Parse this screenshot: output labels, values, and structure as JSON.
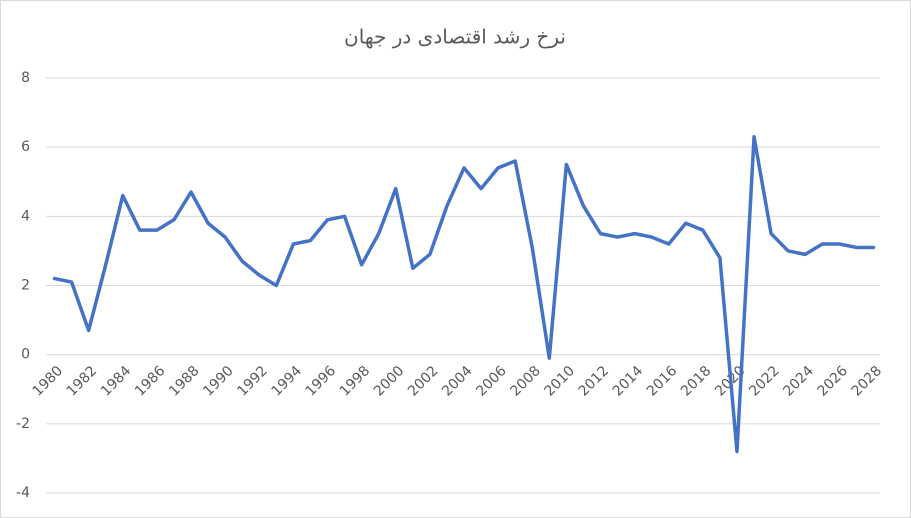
{
  "chart_data": {
    "type": "line",
    "title": "نرخ رشد اقتصادی در جهان",
    "x": [
      1980,
      1981,
      1982,
      1983,
      1984,
      1985,
      1986,
      1987,
      1988,
      1989,
      1990,
      1991,
      1992,
      1993,
      1994,
      1995,
      1996,
      1997,
      1998,
      1999,
      2000,
      2001,
      2002,
      2003,
      2004,
      2005,
      2006,
      2007,
      2008,
      2009,
      2010,
      2011,
      2012,
      2013,
      2014,
      2015,
      2016,
      2017,
      2018,
      2019,
      2020,
      2021,
      2022,
      2023,
      2024,
      2025,
      2026,
      2027,
      2028
    ],
    "series": [
      {
        "name": "نرخ رشد",
        "color": "#4472c4",
        "values": [
          2.2,
          2.1,
          0.7,
          2.6,
          4.6,
          3.6,
          3.6,
          3.9,
          4.7,
          3.8,
          3.4,
          2.7,
          2.3,
          2.0,
          3.2,
          3.3,
          3.9,
          4.0,
          2.6,
          3.5,
          4.8,
          2.5,
          2.9,
          4.3,
          5.4,
          4.8,
          5.4,
          5.6,
          3.1,
          -0.1,
          5.5,
          4.3,
          3.5,
          3.4,
          3.5,
          3.4,
          3.2,
          3.8,
          3.6,
          2.8,
          -2.8,
          6.3,
          3.5,
          3.0,
          2.9,
          3.2,
          3.2,
          3.1,
          3.1
        ]
      }
    ],
    "xlim": [
      1979.5,
      2028.5
    ],
    "xticks": [
      1980,
      1982,
      1984,
      1986,
      1988,
      1990,
      1992,
      1994,
      1996,
      1998,
      2000,
      2002,
      2004,
      2006,
      2008,
      2010,
      2012,
      2014,
      2016,
      2018,
      2020,
      2022,
      2024,
      2026,
      2028
    ],
    "ylim": [
      -4,
      8
    ],
    "yticks": [
      -4,
      -2,
      0,
      2,
      4,
      6,
      8
    ],
    "grid": true
  }
}
